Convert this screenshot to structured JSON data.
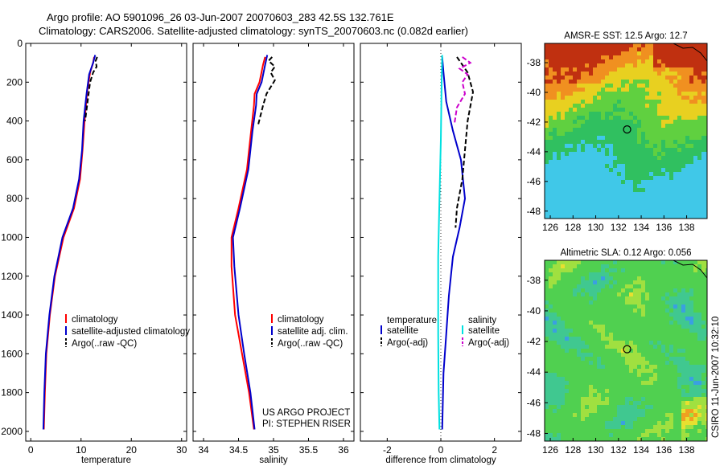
{
  "header": {
    "line1": "Argo profile: AO 5901096_26 03-Jun-2007 20070603_283 42.5S 132.761E",
    "line2": "Climatology: CARS2006. Satellite-adjusted climatology: synTS_20070603.nc (0.082d earlier)"
  },
  "footer_vertical": "CSIRO 11-Jun-2007 10:32:10",
  "colors": {
    "clim": "#ff0000",
    "sat": "#0000cc",
    "argo": "#000000",
    "cyan": "#00e0e0",
    "magenta": "#cc00cc"
  },
  "chart_data": [
    {
      "id": "temperature",
      "type": "line",
      "xlabel": "temperature",
      "ylabel": "",
      "xlim": [
        -1,
        31
      ],
      "ylim": [
        2050,
        0
      ],
      "xticks": [
        "0",
        "10",
        "20",
        "30"
      ],
      "yticks": [
        "0",
        "200",
        "400",
        "600",
        "800",
        "1000",
        "1200",
        "1400",
        "1600",
        "1800",
        "2000"
      ],
      "legend": [
        "climatology",
        "satellite-adjusted climatology",
        "Argo(..raw -QC)"
      ],
      "series": [
        {
          "name": "climatology",
          "style": "solid",
          "color": "#ff0000",
          "points": [
            [
              12.6,
              70
            ],
            [
              12.4,
              100
            ],
            [
              11.8,
              150
            ],
            [
              11.2,
              250
            ],
            [
              10.7,
              400
            ],
            [
              10.3,
              550
            ],
            [
              9.8,
              700
            ],
            [
              8.6,
              850
            ],
            [
              6.5,
              1000
            ],
            [
              4.8,
              1200
            ],
            [
              3.8,
              1400
            ],
            [
              3.1,
              1600
            ],
            [
              2.8,
              1800
            ],
            [
              2.6,
              1990
            ]
          ]
        },
        {
          "name": "satellite-adjusted climatology",
          "style": "solid",
          "color": "#0000cc",
          "points": [
            [
              12.8,
              60
            ],
            [
              12.4,
              100
            ],
            [
              11.6,
              160
            ],
            [
              11.1,
              260
            ],
            [
              10.5,
              400
            ],
            [
              10.2,
              550
            ],
            [
              9.6,
              700
            ],
            [
              8.4,
              850
            ],
            [
              6.3,
              1000
            ],
            [
              4.7,
              1200
            ],
            [
              3.7,
              1400
            ],
            [
              3.0,
              1600
            ],
            [
              2.7,
              1800
            ],
            [
              2.5,
              1990
            ]
          ]
        },
        {
          "name": "Argo(..raw -QC)",
          "style": "dashed",
          "color": "#000000",
          "points": [
            [
              13.2,
              70
            ],
            [
              12.9,
              90
            ],
            [
              13.1,
              120
            ],
            [
              12.4,
              150
            ],
            [
              11.8,
              200
            ],
            [
              11.3,
              300
            ],
            [
              10.8,
              400
            ]
          ]
        }
      ]
    },
    {
      "id": "salinity",
      "type": "line",
      "xlabel": "salinity",
      "xlim": [
        33.85,
        36.15
      ],
      "ylim": [
        2050,
        0
      ],
      "xticks": [
        "34",
        "34.5",
        "35",
        "35.5",
        "36"
      ],
      "legend": [
        "climatology",
        "satellite adj. clim.",
        "Argo(..raw -QC)"
      ],
      "annotation": [
        "US ARGO PROJECT",
        "PI: STEPHEN RISER"
      ],
      "series": [
        {
          "name": "climatology",
          "style": "solid",
          "color": "#ff0000",
          "points": [
            [
              34.88,
              70
            ],
            [
              34.85,
              110
            ],
            [
              34.8,
              200
            ],
            [
              34.73,
              260
            ],
            [
              34.72,
              320
            ],
            [
              34.68,
              450
            ],
            [
              34.62,
              650
            ],
            [
              34.5,
              850
            ],
            [
              34.4,
              1000
            ],
            [
              34.4,
              1150
            ],
            [
              34.45,
              1400
            ],
            [
              34.55,
              1600
            ],
            [
              34.65,
              1800
            ],
            [
              34.72,
              1990
            ]
          ]
        },
        {
          "name": "satellite adj. clim.",
          "style": "solid",
          "color": "#0000cc",
          "points": [
            [
              34.91,
              60
            ],
            [
              34.88,
              110
            ],
            [
              34.83,
              200
            ],
            [
              34.76,
              260
            ],
            [
              34.75,
              320
            ],
            [
              34.7,
              450
            ],
            [
              34.64,
              650
            ],
            [
              34.52,
              850
            ],
            [
              34.42,
              1000
            ],
            [
              34.44,
              1150
            ],
            [
              34.5,
              1400
            ],
            [
              34.58,
              1600
            ],
            [
              34.67,
              1800
            ],
            [
              34.73,
              1990
            ]
          ]
        },
        {
          "name": "Argo(..raw -QC)",
          "style": "dashed",
          "color": "#000000",
          "points": [
            [
              34.98,
              70
            ],
            [
              34.93,
              90
            ],
            [
              35.02,
              120
            ],
            [
              34.96,
              150
            ],
            [
              35.02,
              190
            ],
            [
              34.9,
              260
            ],
            [
              34.85,
              320
            ],
            [
              34.78,
              420
            ]
          ]
        }
      ]
    },
    {
      "id": "difference",
      "type": "line",
      "xlabel": "difference from climatology",
      "xlim": [
        -3,
        3
      ],
      "ylim": [
        2050,
        0
      ],
      "xticks": [
        "-2",
        "0",
        "2"
      ],
      "legend_headers": [
        "temperature",
        "salinity"
      ],
      "legend": [
        "satellite",
        "Argo(-adj)",
        "satellite",
        "Argo(-adj)"
      ],
      "series": [
        {
          "name": "temperature satellite",
          "style": "solid",
          "color": "#0000cc",
          "points": [
            [
              0.05,
              70
            ],
            [
              0.1,
              150
            ],
            [
              0.2,
              300
            ],
            [
              0.45,
              450
            ],
            [
              0.75,
              600
            ],
            [
              0.9,
              800
            ],
            [
              0.7,
              950
            ],
            [
              0.45,
              1100
            ],
            [
              0.3,
              1300
            ],
            [
              0.2,
              1500
            ],
            [
              0.1,
              1700
            ],
            [
              0.05,
              1990
            ]
          ]
        },
        {
          "name": "temperature Argo(-adj)",
          "style": "dashed",
          "color": "#000000",
          "points": [
            [
              0.6,
              70
            ],
            [
              0.7,
              90
            ],
            [
              1.0,
              150
            ],
            [
              1.2,
              250
            ],
            [
              1.0,
              400
            ],
            [
              0.9,
              550
            ],
            [
              0.8,
              700
            ],
            [
              0.6,
              850
            ],
            [
              0.55,
              950
            ]
          ]
        },
        {
          "name": "salinity satellite",
          "style": "solid",
          "color": "#00e0e0",
          "points": [
            [
              0.05,
              60
            ],
            [
              0.03,
              200
            ],
            [
              0.0,
              500
            ],
            [
              -0.05,
              800
            ],
            [
              -0.1,
              1100
            ],
            [
              -0.1,
              1500
            ],
            [
              -0.08,
              1800
            ],
            [
              -0.05,
              1990
            ]
          ]
        },
        {
          "name": "salinity Argo(-adj)",
          "style": "dashed",
          "color": "#cc00cc",
          "points": [
            [
              0.8,
              70
            ],
            [
              1.1,
              100
            ],
            [
              0.7,
              130
            ],
            [
              1.0,
              160
            ],
            [
              0.8,
              200
            ],
            [
              0.9,
              260
            ],
            [
              0.6,
              330
            ],
            [
              0.5,
              420
            ]
          ]
        }
      ]
    },
    {
      "id": "sst_map",
      "type": "heatmap",
      "title": "AMSR-E SST: 12.5 Argo: 12.7",
      "xticks": [
        "126",
        "128",
        "130",
        "132",
        "134",
        "136",
        "138"
      ],
      "yticks": [
        "-38",
        "-40",
        "-42",
        "-44",
        "-46",
        "-48"
      ],
      "xlim": [
        125.5,
        139.8
      ],
      "ylim": [
        -48.5,
        -36.7
      ],
      "marker": [
        132.76,
        -42.5
      ]
    },
    {
      "id": "sla_map",
      "type": "heatmap",
      "title": "Altimetric SLA: 0.12 Argo: 0.056",
      "xticks": [
        "126",
        "128",
        "130",
        "132",
        "134",
        "136",
        "138"
      ],
      "yticks": [
        "-38",
        "-40",
        "-42",
        "-44",
        "-46",
        "-48"
      ],
      "xlim": [
        125.5,
        139.8
      ],
      "ylim": [
        -48.5,
        -36.7
      ],
      "marker": [
        132.76,
        -42.5
      ]
    }
  ]
}
